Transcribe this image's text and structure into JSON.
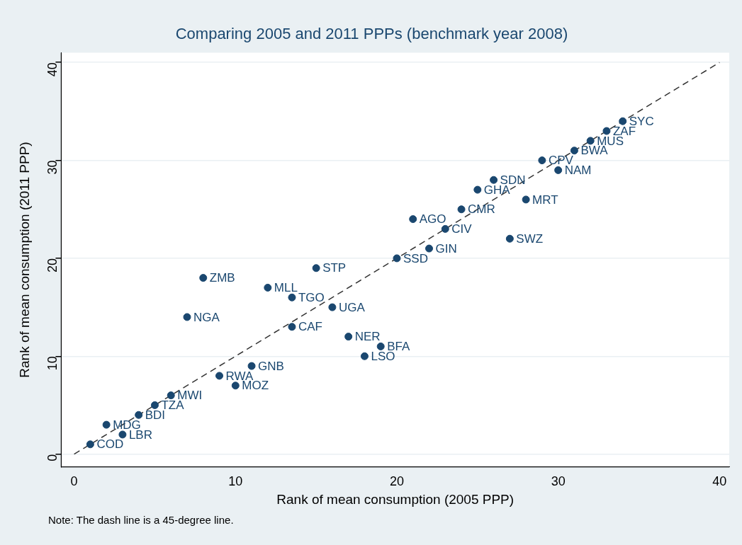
{
  "chart_data": {
    "type": "scatter",
    "title": "Comparing 2005 and 2011 PPPs (benchmark year 2008)",
    "xlabel": "Rank of mean consumption (2005 PPP)",
    "ylabel": "Rank of mean consumption (2011 PPP)",
    "xlim": [
      -0.8,
      40.6
    ],
    "ylim": [
      -1.3,
      41
    ],
    "xticks": [
      0,
      10,
      20,
      30,
      40
    ],
    "yticks": [
      0,
      10,
      20,
      30,
      40
    ],
    "grid": "y",
    "legend": false,
    "marker": "circle",
    "series": [
      {
        "color": "#1a476f",
        "x": [
          1,
          2,
          3,
          4,
          5,
          6,
          7,
          8,
          9,
          10,
          11,
          12,
          13.5,
          13.5,
          15,
          16,
          17,
          18,
          19,
          20,
          21,
          22,
          23,
          24,
          25,
          26,
          27,
          28,
          29,
          30,
          31,
          32,
          33,
          34
        ],
        "values": [
          1,
          3,
          2,
          4,
          5,
          6,
          14,
          18,
          8,
          7,
          9,
          17,
          16,
          13,
          19,
          15,
          12,
          10,
          11,
          20,
          24,
          21,
          23,
          25,
          27,
          28,
          22,
          26,
          30,
          29,
          31,
          32,
          33,
          34
        ]
      },
      {
        "type": "line",
        "color": "#333333",
        "marker": "none",
        "line_style": "dashed",
        "x": [
          0,
          40
        ],
        "values": [
          0,
          40
        ]
      }
    ],
    "annotations": [
      {
        "text": "COD",
        "x": 1,
        "y": 1
      },
      {
        "text": "MDG",
        "x": 2,
        "y": 3
      },
      {
        "text": "LBR",
        "x": 3,
        "y": 2
      },
      {
        "text": "BDI",
        "x": 4,
        "y": 4
      },
      {
        "text": "TZA",
        "x": 5,
        "y": 5
      },
      {
        "text": "MWI",
        "x": 6,
        "y": 6
      },
      {
        "text": "NGA",
        "x": 7,
        "y": 14
      },
      {
        "text": "ZMB",
        "x": 8,
        "y": 18
      },
      {
        "text": "RWA",
        "x": 9,
        "y": 8
      },
      {
        "text": "MOZ",
        "x": 10,
        "y": 7
      },
      {
        "text": "GNB",
        "x": 11,
        "y": 9
      },
      {
        "text": "MLL",
        "x": 12,
        "y": 17
      },
      {
        "text": "TGO",
        "x": 13.5,
        "y": 16
      },
      {
        "text": "CAF",
        "x": 13.5,
        "y": 13
      },
      {
        "text": "STP",
        "x": 15,
        "y": 19
      },
      {
        "text": "UGA",
        "x": 16,
        "y": 15
      },
      {
        "text": "NER",
        "x": 17,
        "y": 12
      },
      {
        "text": "LSO",
        "x": 18,
        "y": 10
      },
      {
        "text": "BFA",
        "x": 19,
        "y": 11
      },
      {
        "text": "SSD",
        "x": 20,
        "y": 20
      },
      {
        "text": "AGO",
        "x": 21,
        "y": 24
      },
      {
        "text": "GIN",
        "x": 22,
        "y": 21
      },
      {
        "text": "CIV",
        "x": 23,
        "y": 23
      },
      {
        "text": "CMR",
        "x": 24,
        "y": 25
      },
      {
        "text": "GHA",
        "x": 25,
        "y": 27
      },
      {
        "text": "SDN",
        "x": 26,
        "y": 28
      },
      {
        "text": "SWZ",
        "x": 27,
        "y": 22
      },
      {
        "text": "MRT",
        "x": 28,
        "y": 26
      },
      {
        "text": "CPV",
        "x": 29,
        "y": 30
      },
      {
        "text": "NAM",
        "x": 30,
        "y": 29
      },
      {
        "text": "BWA",
        "x": 31,
        "y": 31
      },
      {
        "text": "MUS",
        "x": 32,
        "y": 32
      },
      {
        "text": "ZAF",
        "x": 33,
        "y": 33
      },
      {
        "text": "SYC",
        "x": 34,
        "y": 34
      },
      "Note: The dash line is a 45-degree line."
    ]
  }
}
